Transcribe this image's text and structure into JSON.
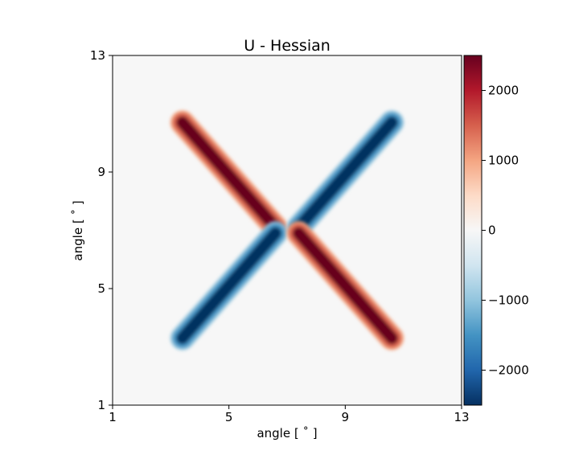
{
  "chart_data": {
    "type": "heatmap",
    "title": "U - Hessian",
    "xlabel": "angle [$^\\circ$]",
    "ylabel": "angle [$^\\circ$]",
    "xlabel_display": "angle [ ˚ ]",
    "ylabel_display": "angle [ ˚ ]",
    "xlim": [
      1,
      13
    ],
    "ylim": [
      1,
      13
    ],
    "xticks": [
      1,
      5,
      9,
      13
    ],
    "yticks": [
      1,
      5,
      9,
      13
    ],
    "grid": false,
    "colormap": "RdBu_r",
    "colorbar": {
      "range": [
        -2500,
        2500
      ],
      "ticks": [
        -2000,
        -1000,
        0,
        1000,
        2000
      ],
      "tick_labels": [
        "−2000",
        "−1000",
        "0",
        "1000",
        "2000"
      ],
      "colors": [
        "#053061",
        "#2166ac",
        "#4393c3",
        "#92c5de",
        "#d1e5f0",
        "#f7f7f7",
        "#fddbc7",
        "#f4a582",
        "#d6604d",
        "#b2182b",
        "#67001f"
      ]
    },
    "background_value": 0,
    "features": [
      {
        "name": "upper-left arm",
        "from": [
          3.4,
          10.7
        ],
        "to": [
          6.6,
          7.1
        ],
        "peak_value": 2500
      },
      {
        "name": "upper-right arm",
        "from": [
          7.4,
          7.1
        ],
        "to": [
          10.6,
          10.7
        ],
        "peak_value": -2400
      },
      {
        "name": "lower-left arm",
        "from": [
          3.4,
          3.3
        ],
        "to": [
          6.6,
          6.9
        ],
        "peak_value": -2400
      },
      {
        "name": "lower-right arm",
        "from": [
          7.4,
          6.9
        ],
        "to": [
          10.6,
          3.3
        ],
        "peak_value": 2500
      }
    ]
  }
}
